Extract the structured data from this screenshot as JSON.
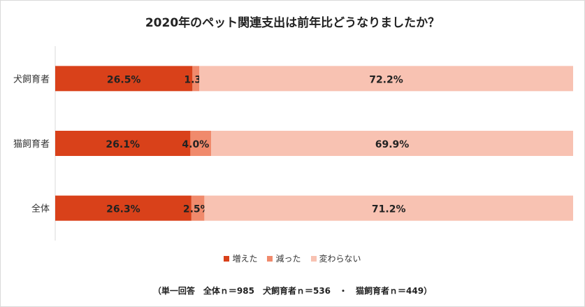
{
  "chart_data": {
    "type": "bar",
    "orientation": "horizontal",
    "stacked": true,
    "percent": true,
    "title": "2020年のペット関連支出は前年比どうなりましたか？",
    "categories": [
      "犬飼育者",
      "猫飼育者",
      "全体"
    ],
    "series": [
      {
        "name": "増えた",
        "values": [
          26.5,
          26.1,
          26.3
        ],
        "labels": [
          "26.5%",
          "26.1%",
          "26.3%"
        ],
        "color": "#d9411a"
      },
      {
        "name": "減った",
        "values": [
          1.3,
          4.0,
          2.5
        ],
        "labels": [
          "1.3%",
          "4.0%",
          "2.5%"
        ],
        "color": "#f08a6c"
      },
      {
        "name": "変わらない",
        "values": [
          72.2,
          69.9,
          71.2
        ],
        "labels": [
          "72.2%",
          "69.9%",
          "71.2%"
        ],
        "color": "#f8c2b2"
      }
    ],
    "xlim": [
      0,
      100
    ],
    "grid": false,
    "legend": "bottom",
    "footnote": "（単一回答　全体ｎ＝985　犬飼育者ｎ＝536　・　猫飼育者ｎ＝449）"
  }
}
